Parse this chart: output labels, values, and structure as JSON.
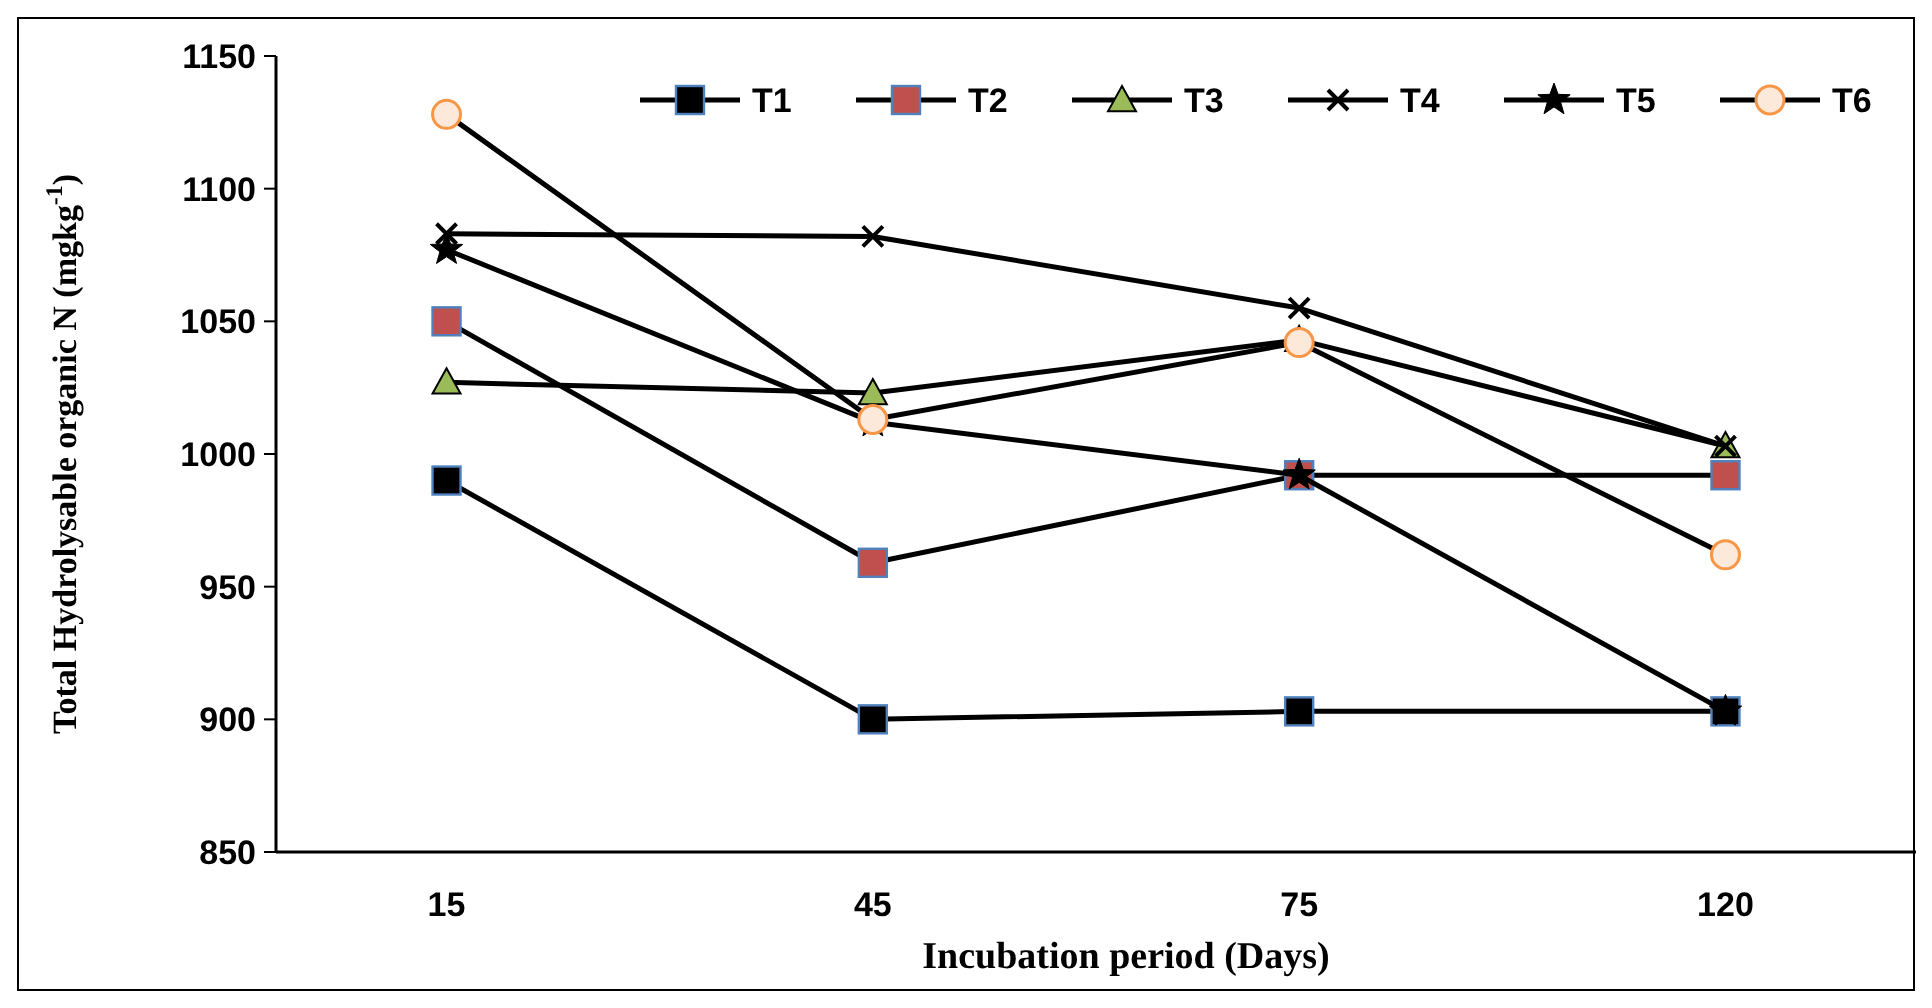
{
  "chart_data": {
    "type": "line",
    "xlabel": "Incubation period (Days)",
    "ylabel": "Total Hydrolysable organic N (mgkg$^{-1}$)",
    "categories": [
      "15",
      "45",
      "75",
      "120"
    ],
    "ylim": [
      850,
      1150
    ],
    "yticks": [
      850,
      900,
      950,
      1000,
      1050,
      1100,
      1150
    ],
    "grid": false,
    "legend": "top right",
    "series": [
      {
        "name": "T1",
        "color": "#000000",
        "marker": "square",
        "values": [
          990,
          900,
          903,
          903
        ]
      },
      {
        "name": "T2",
        "color": "#c0504d",
        "marker": "square",
        "values": [
          1050,
          959,
          992,
          992
        ]
      },
      {
        "name": "T3",
        "color": "#9bbb59",
        "marker": "triangle",
        "values": [
          1027,
          1023,
          1043,
          1003
        ]
      },
      {
        "name": "T4",
        "color": "#000000",
        "marker": "cross",
        "values": [
          1083,
          1082,
          1055,
          1003
        ]
      },
      {
        "name": "T5",
        "color": "#000000",
        "marker": "star",
        "values": [
          1077,
          1012,
          992,
          903
        ]
      },
      {
        "name": "T6",
        "color": "#f79646",
        "marker": "circle",
        "values": [
          1128,
          1013,
          1042,
          962
        ]
      }
    ]
  }
}
